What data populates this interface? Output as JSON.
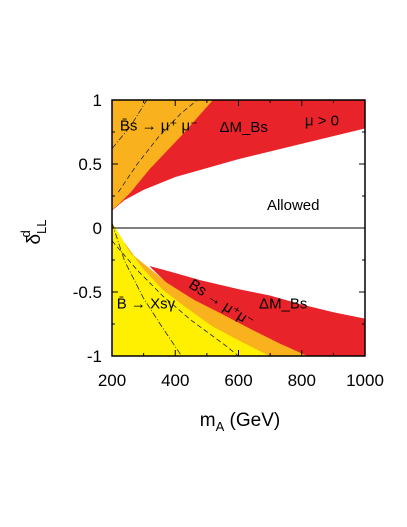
{
  "chart_data": {
    "type": "area",
    "xlabel": "m_A (GeV)",
    "xlim": [
      200,
      1000
    ],
    "ylim": [
      -1,
      1
    ],
    "xticks": [
      "200",
      "400",
      "600",
      "800",
      "1000"
    ],
    "yticks": [
      "1",
      "0.5",
      "0",
      "-0.5",
      "-1"
    ],
    "colors": {
      "yellow": "#ffef00",
      "orange": "#f9b21d",
      "red": "#e9232a"
    },
    "regions": [
      {
        "key": "upper_orange",
        "fill": "orange",
        "points": [
          [
            200,
            1
          ],
          [
            520,
            1
          ],
          [
            420,
            0.72
          ],
          [
            320,
            0.46
          ],
          [
            260,
            0.28
          ],
          [
            220,
            0.18
          ],
          [
            200,
            0.14
          ]
        ]
      },
      {
        "key": "upper_red",
        "fill": "red",
        "points": [
          [
            520,
            1
          ],
          [
            1000,
            1
          ],
          [
            1000,
            0.78
          ],
          [
            800,
            0.66
          ],
          [
            600,
            0.54
          ],
          [
            400,
            0.4
          ],
          [
            300,
            0.3
          ],
          [
            240,
            0.22
          ],
          [
            210,
            0.16
          ],
          [
            200,
            0.14
          ],
          [
            220,
            0.18
          ],
          [
            260,
            0.28
          ],
          [
            320,
            0.46
          ],
          [
            420,
            0.72
          ]
        ]
      },
      {
        "key": "lower_yellow",
        "fill": "yellow",
        "points": [
          [
            200,
            0.04
          ],
          [
            240,
            -0.12
          ],
          [
            300,
            -0.32
          ],
          [
            360,
            -0.48
          ],
          [
            440,
            -0.63
          ],
          [
            520,
            -0.77
          ],
          [
            620,
            -0.9
          ],
          [
            700,
            -1
          ],
          [
            200,
            -1
          ]
        ]
      },
      {
        "key": "lower_orange",
        "fill": "orange",
        "points": [
          [
            240,
            -0.12
          ],
          [
            300,
            -0.32
          ],
          [
            360,
            -0.48
          ],
          [
            440,
            -0.63
          ],
          [
            520,
            -0.77
          ],
          [
            620,
            -0.9
          ],
          [
            700,
            -1
          ],
          [
            820,
            -1
          ],
          [
            730,
            -0.9
          ],
          [
            640,
            -0.79
          ],
          [
            540,
            -0.66
          ],
          [
            460,
            -0.56
          ],
          [
            370,
            -0.42
          ],
          [
            320,
            -0.32
          ],
          [
            260,
            -0.2
          ]
        ]
      },
      {
        "key": "lower_red",
        "fill": "red",
        "points": [
          [
            320,
            -0.3
          ],
          [
            380,
            -0.34
          ],
          [
            480,
            -0.41
          ],
          [
            600,
            -0.48
          ],
          [
            700,
            -0.53
          ],
          [
            800,
            -0.6
          ],
          [
            900,
            -0.66
          ],
          [
            1000,
            -0.71
          ],
          [
            1000,
            -1
          ],
          [
            820,
            -1
          ],
          [
            730,
            -0.9
          ],
          [
            640,
            -0.79
          ],
          [
            540,
            -0.66
          ],
          [
            460,
            -0.56
          ],
          [
            370,
            -0.42
          ]
        ]
      }
    ],
    "dashed_lines": [
      [
        [
          220,
          0.28
        ],
        [
          280,
          0.5
        ],
        [
          350,
          0.72
        ],
        [
          420,
          0.9
        ],
        [
          470,
          1
        ]
      ],
      [
        [
          200,
          -0.1
        ],
        [
          280,
          -0.33
        ],
        [
          360,
          -0.53
        ],
        [
          450,
          -0.72
        ],
        [
          560,
          -0.92
        ],
        [
          600,
          -1
        ]
      ]
    ],
    "dashdot_lines": [
      [
        [
          200,
          0.62
        ],
        [
          260,
          0.8
        ],
        [
          310,
          1
        ]
      ],
      [
        [
          200,
          0.04
        ],
        [
          240,
          -0.26
        ],
        [
          300,
          -0.55
        ],
        [
          360,
          -0.78
        ],
        [
          420,
          -1
        ]
      ]
    ],
    "annotations": [
      {
        "key": "bs_upper",
        "text": "B̄s → μ⁺ μ⁻",
        "x": 225,
        "y": 0.76
      },
      {
        "key": "dmbs_upper",
        "text": "ΔM_Bs",
        "x": 540,
        "y": 0.75
      },
      {
        "key": "mu_gt0",
        "text": "μ > 0",
        "x": 810,
        "y": 0.8
      },
      {
        "key": "allowed",
        "text": "Allowed",
        "x": 690,
        "y": 0.14
      },
      {
        "key": "b_to_xs",
        "text": "B̄ → Xsγ",
        "x": 215,
        "y": -0.63
      },
      {
        "key": "bs_lower",
        "text": "Bs → μ⁺μ⁻",
        "x": 440,
        "y": -0.46
      },
      {
        "key": "dmbs_lower",
        "text": "ΔM_Bs",
        "x": 665,
        "y": -0.63
      }
    ]
  }
}
